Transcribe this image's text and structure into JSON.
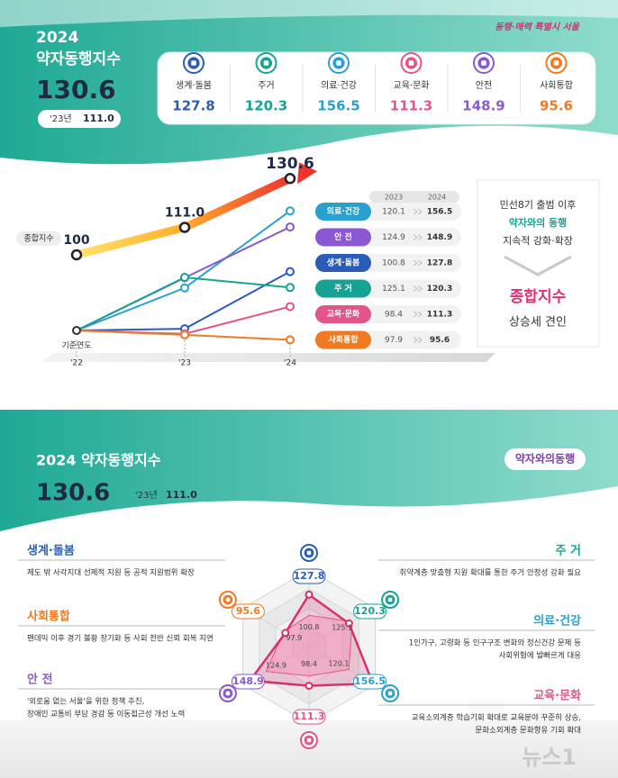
{
  "brand": "동행·매력 특별시 서울",
  "top": {
    "year": "2024",
    "title": "약자동행지수",
    "index": "130.6",
    "prev_label": "'23년",
    "prev_value": "111.0"
  },
  "domains": [
    {
      "name": "생계·돌봄",
      "value": 127.8,
      "color": "#2b5cb8"
    },
    {
      "name": "주거",
      "value": 120.3,
      "color": "#16a394"
    },
    {
      "name": "의료·건강",
      "value": 156.5,
      "color": "#2aa0cf"
    },
    {
      "name": "교육·문화",
      "value": 111.3,
      "color": "#e2558b"
    },
    {
      "name": "안전",
      "value": 148.9,
      "color": "#8a58d2"
    },
    {
      "name": "사회통합",
      "value": 95.6,
      "color": "#f07a22"
    }
  ],
  "trend": {
    "label": "종합지수",
    "x": [
      "'22",
      "'23",
      "'24"
    ],
    "base_label": "기준연도",
    "values": [
      100,
      111.0,
      130.6
    ],
    "value_labels": [
      "100",
      "111.0",
      "130.6"
    ]
  },
  "table": {
    "headers": [
      "2023",
      "2024"
    ],
    "rows": [
      {
        "name": "의료·건강",
        "y2023": 120.1,
        "y2024": 156.5,
        "color": "#2aa0cf"
      },
      {
        "name": "안 전",
        "y2023": 124.9,
        "y2024": 148.9,
        "color": "#8a58d2"
      },
      {
        "name": "생계·돌봄",
        "y2023": 100.8,
        "y2024": 127.8,
        "color": "#2b5cb8"
      },
      {
        "name": "주 거",
        "y2023": 125.1,
        "y2024": 120.3,
        "color": "#16a394"
      },
      {
        "name": "교육·문화",
        "y2023": 98.4,
        "y2024": 111.3,
        "color": "#e2558b"
      },
      {
        "name": "사회통합",
        "y2023": 97.9,
        "y2024": 95.6,
        "color": "#f07a22"
      }
    ]
  },
  "sidebar": {
    "line1": "민선8기 출범 이후",
    "line2": "약자와의 동행",
    "line3": "지속적 강화·확장",
    "highlight": "종합지수",
    "line4": "상승세 견인"
  },
  "bottom": {
    "title": "2024 약자동행지수",
    "index": "130.6",
    "prev_label": "'23년",
    "prev_value": "111.0",
    "logo": "약자와의동행"
  },
  "radar": {
    "outer": [
      127.8,
      120.3,
      156.5,
      111.3,
      148.9,
      95.6
    ],
    "inner": [
      100.8,
      125.1,
      120.1,
      98.4,
      124.9,
      97.9
    ]
  },
  "notes": [
    {
      "title": "생계·돌봄",
      "lines": [
        "제도 밖 사각지대 선제적 지원 등 공적 지원범위 확장"
      ]
    },
    {
      "title": "주 거",
      "lines": [
        "취약계층 맞춤형 지원 확대를 통한 주거 안정성 강화 필요"
      ]
    },
    {
      "title": "의료·건강",
      "lines": [
        "1인가구, 고령화 등 인구구조 변화와 정신건강 문제 등",
        "사회위험에 발빠르게 대응"
      ]
    },
    {
      "title": "교육·문화",
      "lines": [
        "교육소외계층 학습기회 확대로 교육분야 꾸준히 상승,",
        "문화소외계층 문화향유 기회 확대"
      ]
    },
    {
      "title": "안 전",
      "lines": [
        "'외로움 없는 서울'을 위한 정책 추진,",
        "장애인 교통비 부담 경감 등 이동접근성 개선 노력"
      ]
    },
    {
      "title": "사회통합",
      "lines": [
        "팬데믹 이후 경기 불황 장기화 등 사회 전반 신뢰 회복 지연"
      ]
    }
  ],
  "watermark": "뉴스1"
}
